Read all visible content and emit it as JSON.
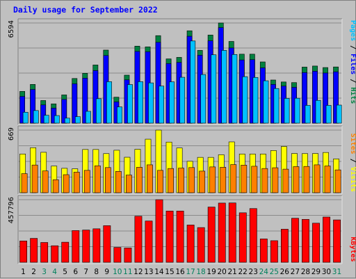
{
  "chart_data": {
    "type": "bar",
    "title": "Daily usage for September 2022",
    "colors": {
      "hits": "#008040",
      "files": "#0000ff",
      "pages": "#00c0ff",
      "visits": "#ffff00",
      "sites": "#ff8000",
      "kbytes": "#ff0000",
      "weekend_label": "#00805c",
      "weekday_label": "#000000"
    },
    "days": [
      {
        "label": "1",
        "weekend": false
      },
      {
        "label": "2",
        "weekend": false
      },
      {
        "label": "3",
        "weekend": true
      },
      {
        "label": "4",
        "weekend": true
      },
      {
        "label": "5",
        "weekend": false
      },
      {
        "label": "6",
        "weekend": false
      },
      {
        "label": "7",
        "weekend": false
      },
      {
        "label": "8",
        "weekend": false
      },
      {
        "label": "9",
        "weekend": false
      },
      {
        "label": "10",
        "weekend": true
      },
      {
        "label": "11",
        "weekend": true
      },
      {
        "label": "12",
        "weekend": false
      },
      {
        "label": "13",
        "weekend": false
      },
      {
        "label": "14",
        "weekend": false
      },
      {
        "label": "15",
        "weekend": false
      },
      {
        "label": "16",
        "weekend": false
      },
      {
        "label": "17",
        "weekend": true
      },
      {
        "label": "18",
        "weekend": true
      },
      {
        "label": "19",
        "weekend": false
      },
      {
        "label": "20",
        "weekend": false
      },
      {
        "label": "21",
        "weekend": false
      },
      {
        "label": "22",
        "weekend": false
      },
      {
        "label": "23",
        "weekend": false
      },
      {
        "label": "24",
        "weekend": true
      },
      {
        "label": "25",
        "weekend": true
      },
      {
        "label": "26",
        "weekend": false
      },
      {
        "label": "27",
        "weekend": false
      },
      {
        "label": "28",
        "weekend": false
      },
      {
        "label": "29",
        "weekend": false
      },
      {
        "label": "30",
        "weekend": false
      },
      {
        "label": "31",
        "weekend": true
      }
    ],
    "panels": [
      {
        "name": "traffic",
        "max_label": "6594",
        "ylim": [
          0,
          6594
        ],
        "legend": [
          {
            "text": "Pages",
            "color": "#00c0ff"
          },
          {
            "text": " / ",
            "color": "#000000"
          },
          {
            "text": "Files",
            "color": "#0000ff"
          },
          {
            "text": " / ",
            "color": "#000000"
          },
          {
            "text": "Hits",
            "color": "#008040"
          }
        ],
        "series": [
          {
            "name": "Hits",
            "color": "#008040",
            "values": [
              2090,
              2550,
              1490,
              1270,
              1860,
              2940,
              3280,
              3830,
              4810,
              1710,
              3160,
              5070,
              5020,
              5760,
              4230,
              4330,
              6080,
              4790,
              5800,
              6594,
              5380,
              4540,
              4540,
              4030,
              2840,
              2710,
              2670,
              3690,
              3760,
              3660,
              3700
            ]
          },
          {
            "name": "Files",
            "color": "#0000ff",
            "values": [
              1760,
              2220,
              1200,
              990,
              1560,
              2590,
              2960,
              3460,
              4450,
              1400,
              2850,
              4720,
              4700,
              5320,
              3920,
              4000,
              5720,
              4470,
              5420,
              6290,
              4950,
              4160,
              4180,
              3640,
              2550,
              2440,
              2360,
              3330,
              3420,
              3300,
              3380
            ]
          },
          {
            "name": "Pages",
            "color": "#00c0ff",
            "values": [
              720,
              830,
              520,
              500,
              330,
              430,
              780,
              1610,
              2730,
              1070,
              2540,
              2730,
              2650,
              2440,
              2720,
              3020,
              5410,
              3200,
              4500,
              4790,
              4520,
              3060,
              3010,
              2790,
              2280,
              1630,
              1640,
              1170,
              1500,
              1170,
              1190
            ]
          }
        ]
      },
      {
        "name": "visitors",
        "max_label": "669",
        "ylim": [
          0,
          669
        ],
        "legend": [
          {
            "text": "Sites",
            "color": "#ff8000"
          },
          {
            "text": " / ",
            "color": "#000000"
          },
          {
            "text": "Visits",
            "color": "#ffff00"
          }
        ],
        "series": [
          {
            "name": "Visits",
            "color": "#ffff00",
            "values": [
              414,
              481,
              432,
              285,
              261,
              256,
              462,
              462,
              418,
              454,
              379,
              464,
              572,
              669,
              541,
              478,
              336,
              378,
              378,
              406,
              543,
              414,
              414,
              414,
              451,
              494,
              419,
              418,
              419,
              430,
              361
            ]
          },
          {
            "name": "Sites",
            "color": "#ff8000",
            "values": [
              204,
              296,
              233,
              139,
              193,
              220,
              239,
              288,
              269,
              228,
              189,
              272,
              298,
              239,
              259,
              263,
              269,
              231,
              276,
              272,
              301,
              295,
              283,
              259,
              267,
              252,
              279,
              281,
              298,
              286,
              244
            ]
          }
        ]
      },
      {
        "name": "volume",
        "max_label": "457796",
        "ylim": [
          0,
          457796
        ],
        "legend": [
          {
            "text": "KBytes",
            "color": "#ff0000"
          }
        ],
        "series": [
          {
            "name": "KBytes",
            "color": "#ff0000",
            "values": [
              156000,
              175000,
              145000,
              121000,
              147000,
              232000,
              236000,
              245000,
              268000,
              109000,
              105000,
              337000,
              302000,
              457796,
              375000,
              375000,
              273000,
              254000,
              404000,
              433000,
              434000,
              362000,
              393000,
              171000,
              158000,
              242000,
              322000,
              314000,
              286000,
              331000,
              310000
            ]
          }
        ]
      }
    ]
  }
}
